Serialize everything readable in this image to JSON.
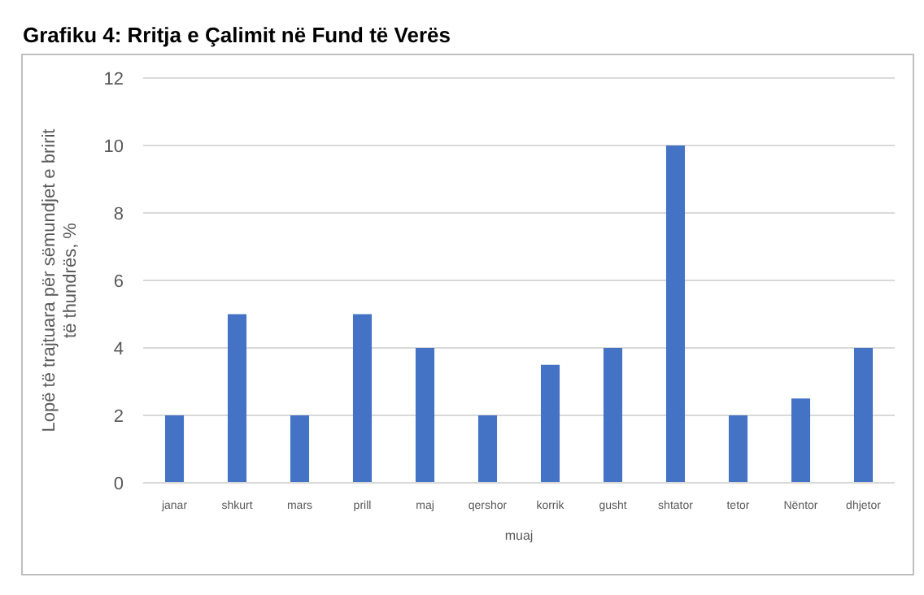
{
  "chart_data": {
    "type": "bar",
    "title": "Grafiku 4: Rritja e Çalimit në Fund të Verës",
    "xlabel": "muaj",
    "ylabel": "Lopë të trajtuara për sëmundjet e bririt të thundrës, %",
    "categories": [
      "janar",
      "shkurt",
      "mars",
      "prill",
      "maj",
      "qershor",
      "korrik",
      "gusht",
      "shtator",
      "tetor",
      "Nëntor",
      "dhjetor"
    ],
    "values": [
      2,
      5,
      2,
      5,
      4,
      2,
      3.5,
      4,
      10,
      2,
      2.5,
      4
    ],
    "color": "#4472c4",
    "ylim": [
      0,
      12
    ],
    "yticks": [
      0,
      2,
      4,
      6,
      8,
      10,
      12
    ],
    "grid": "y"
  }
}
